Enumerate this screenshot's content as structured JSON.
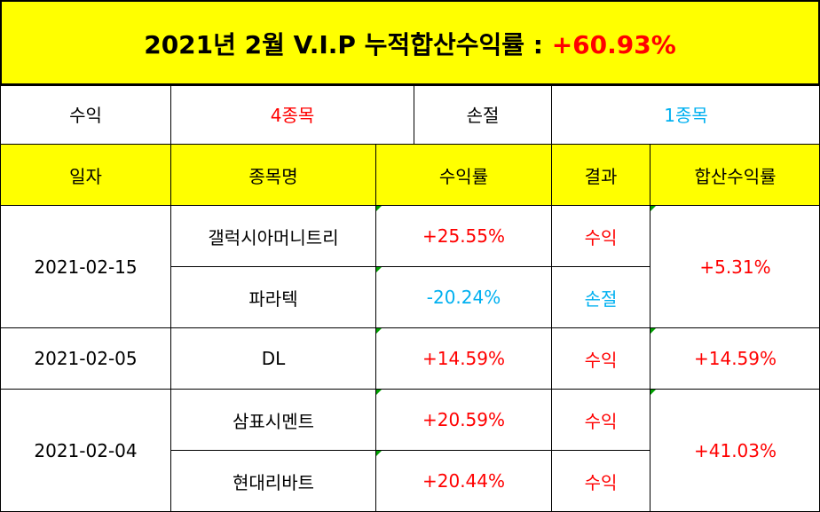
{
  "title": {
    "text": "2021년 2월 V.I.P 누적합산수익률 : ",
    "value": "+60.93%"
  },
  "summary": {
    "profit_label": "수익",
    "profit_count": "4종목",
    "loss_label": "손절",
    "loss_count": "1종목"
  },
  "headers": {
    "date": "일자",
    "name": "종목명",
    "return": "수익률",
    "result": "결과",
    "total": "합산수익률"
  },
  "groups": [
    {
      "date": "2021-02-15",
      "total": "+5.31%",
      "rows": [
        {
          "name": "갤럭시아머니트리",
          "return": "+25.55%",
          "result": "수익"
        },
        {
          "name": "파라텍",
          "return": "-20.24%",
          "result": "손절"
        }
      ]
    },
    {
      "date": "2021-02-05",
      "total": "+14.59%",
      "rows": [
        {
          "name": "DL",
          "return": "+14.59%",
          "result": "수익"
        }
      ]
    },
    {
      "date": "2021-02-04",
      "total": "+41.03%",
      "rows": [
        {
          "name": "삼표시멘트",
          "return": "+20.59%",
          "result": "수익"
        },
        {
          "name": "현대리바트",
          "return": "+20.44%",
          "result": "수익"
        }
      ]
    }
  ],
  "colors": {
    "header_bg": "#ffff00",
    "profit": "#ff0000",
    "loss": "#00b0f0"
  }
}
